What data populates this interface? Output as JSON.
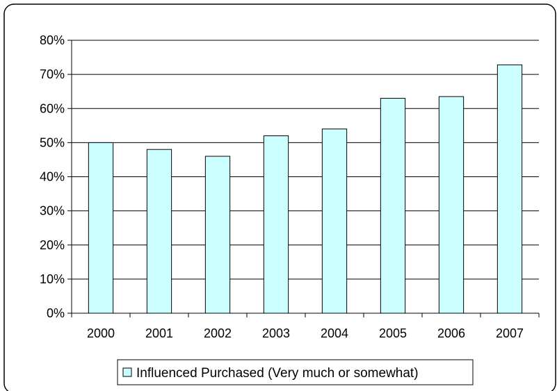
{
  "chart_data": {
    "type": "bar",
    "title": "",
    "xlabel": "",
    "ylabel": "",
    "categories": [
      "2000",
      "2001",
      "2002",
      "2003",
      "2004",
      "2005",
      "2006",
      "2007"
    ],
    "series": [
      {
        "name": "Influenced Purchased (Very much or somewhat)",
        "values": [
          50,
          48,
          46,
          52,
          54,
          63,
          63.5,
          72.8
        ]
      }
    ],
    "ylim": [
      0,
      80
    ],
    "y_ticks": [
      0,
      10,
      20,
      30,
      40,
      50,
      60,
      70,
      80
    ],
    "y_tick_labels": [
      "0%",
      "10%",
      "20%",
      "30%",
      "40%",
      "50%",
      "60%",
      "70%",
      "80%"
    ],
    "grid": true,
    "legend_position": "bottom",
    "colors": {
      "bar_fill": "#ccffff",
      "bar_stroke": "#000000",
      "grid": "#000000",
      "frame": "#000000"
    }
  }
}
